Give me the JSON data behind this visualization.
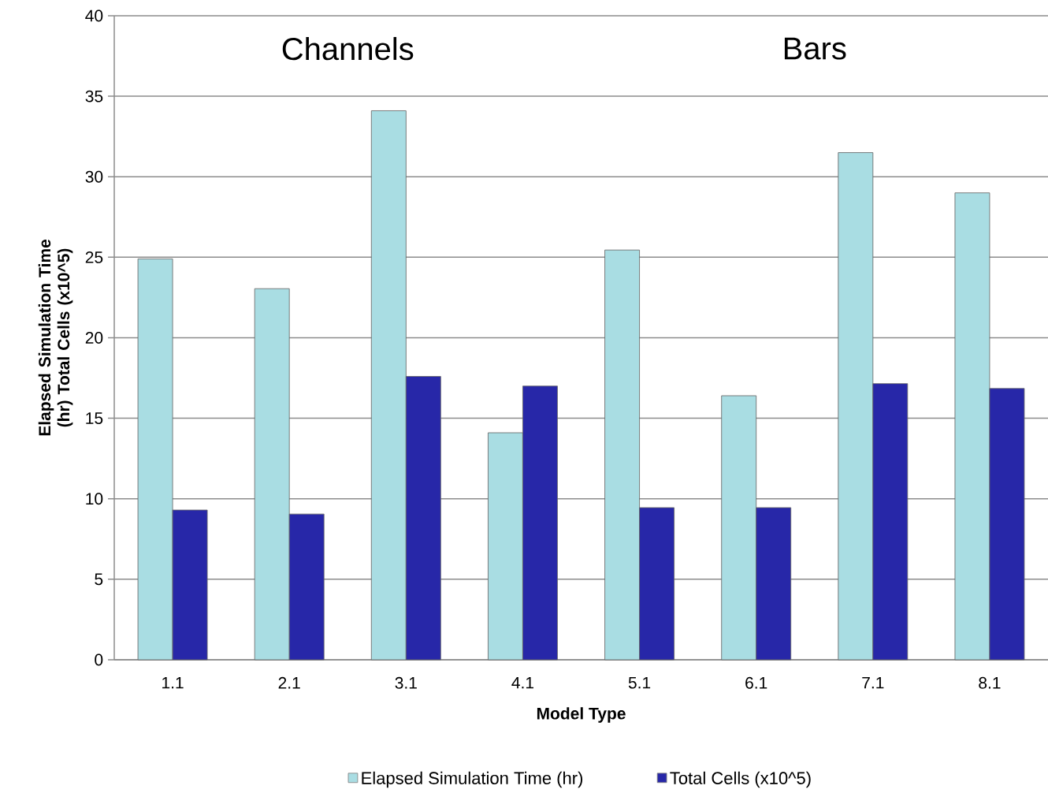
{
  "chart_data": {
    "type": "bar",
    "xlabel": "Model Type",
    "ylabel": "Elapsed Simulation Time (hr) Total Cells (x10^5)",
    "categories": [
      "1.1",
      "2.1",
      "3.1",
      "4.1",
      "5.1",
      "6.1",
      "7.1",
      "8.1"
    ],
    "series": [
      {
        "name": "Elapsed Simulation Time (hr)",
        "color": "#a9dde3",
        "values": [
          24.9,
          23.05,
          34.1,
          14.1,
          25.45,
          16.4,
          31.5,
          29.0
        ]
      },
      {
        "name": "Total Cells (x10^5)",
        "color": "#2727a8",
        "values": [
          9.3,
          9.05,
          17.6,
          17.0,
          9.45,
          9.45,
          17.15,
          16.85
        ]
      }
    ],
    "ylim": [
      0,
      40
    ],
    "yticks": [
      0,
      5,
      10,
      15,
      20,
      25,
      30,
      35,
      40
    ],
    "grid": "y",
    "legend": "bottom",
    "annotations": [
      "Channels",
      "Bars"
    ]
  }
}
